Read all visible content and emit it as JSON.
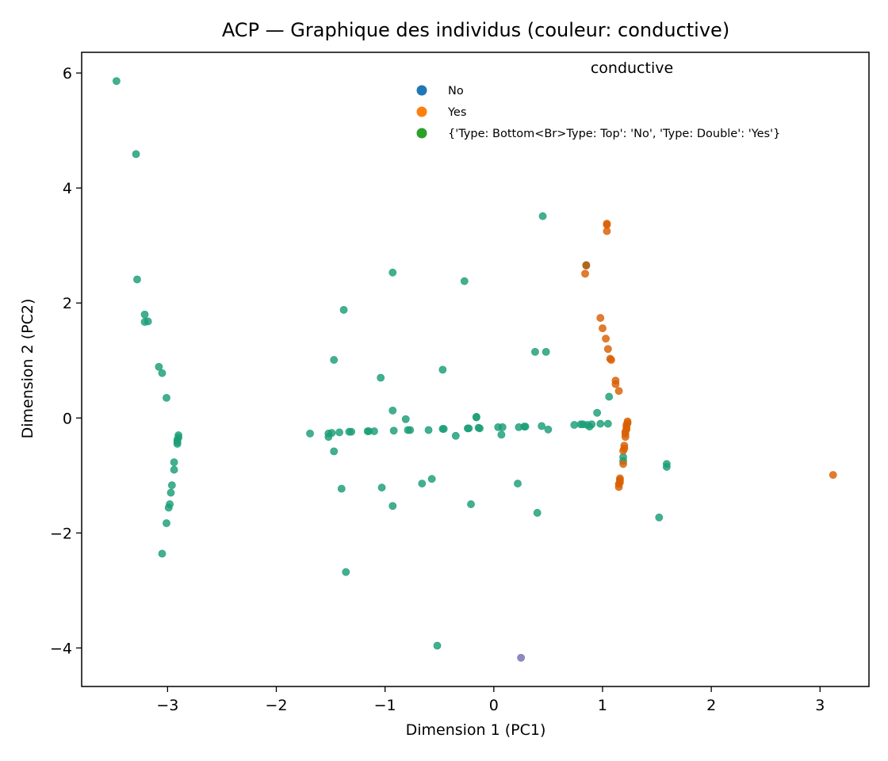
{
  "chart_data": {
    "type": "scatter",
    "title": "ACP — Graphique des individus (couleur: conductive)",
    "xlabel": "Dimension 1 (PC1)",
    "ylabel": "Dimension 2 (PC2)",
    "xlim": [
      -3.79,
      3.45
    ],
    "ylim": [
      -4.67,
      6.36
    ],
    "xticks": [
      -3,
      -2,
      -1,
      0,
      1,
      2,
      3
    ],
    "yticks": [
      -4,
      -2,
      0,
      2,
      4,
      6
    ],
    "xtick_labels": [
      "−3",
      "−2",
      "−1",
      "0",
      "1",
      "2",
      "3"
    ],
    "ytick_labels": [
      "−4",
      "−2",
      "0",
      "2",
      "4",
      "6"
    ],
    "grid": false,
    "legend": {
      "title": "conductive",
      "placement": "top-right",
      "entries": [
        {
          "label": "No",
          "color": "#1f77b4"
        },
        {
          "label": "Yes",
          "color": "#ff7f0e"
        },
        {
          "label": "{'Type: Bottom<Br>Type: Top': 'No', 'Type: Double': 'Yes'}",
          "color": "#2ca02c"
        }
      ]
    },
    "series": [
      {
        "color": "#1b9e77",
        "points": [
          [
            -3.47,
            5.86
          ],
          [
            -3.29,
            4.59
          ],
          [
            -3.28,
            2.41
          ],
          [
            -3.21,
            1.8
          ],
          [
            -3.21,
            1.67
          ],
          [
            -3.18,
            1.68
          ],
          [
            -3.08,
            0.89
          ],
          [
            -3.05,
            0.78
          ],
          [
            -3.01,
            0.35
          ],
          [
            -2.9,
            -0.3
          ],
          [
            -2.9,
            -0.34
          ],
          [
            -2.91,
            -0.38
          ],
          [
            -2.91,
            -0.42
          ],
          [
            -2.91,
            -0.45
          ],
          [
            -2.94,
            -0.77
          ],
          [
            -2.94,
            -0.9
          ],
          [
            -2.96,
            -1.17
          ],
          [
            -2.97,
            -1.3
          ],
          [
            -2.98,
            -1.5
          ],
          [
            -2.99,
            -1.56
          ],
          [
            -3.01,
            -1.83
          ],
          [
            -3.05,
            -2.36
          ],
          [
            -1.69,
            -0.27
          ],
          [
            -1.52,
            -0.33
          ],
          [
            -1.52,
            -0.27
          ],
          [
            -1.49,
            -0.26
          ],
          [
            -1.47,
            -0.58
          ],
          [
            -1.47,
            1.01
          ],
          [
            -1.42,
            -0.25
          ],
          [
            -1.4,
            -1.23
          ],
          [
            -1.38,
            1.88
          ],
          [
            -1.36,
            -2.68
          ],
          [
            -1.33,
            -0.24
          ],
          [
            -1.31,
            -0.24
          ],
          [
            -1.16,
            -0.23
          ],
          [
            -1.15,
            -0.23
          ],
          [
            -1.1,
            -0.23
          ],
          [
            -1.04,
            0.7
          ],
          [
            -1.03,
            -1.21
          ],
          [
            -0.93,
            2.53
          ],
          [
            -0.93,
            0.13
          ],
          [
            -0.92,
            -0.22
          ],
          [
            -0.93,
            -1.53
          ],
          [
            -0.81,
            -0.02
          ],
          [
            -0.79,
            -0.21
          ],
          [
            -0.77,
            -0.21
          ],
          [
            -0.66,
            -1.14
          ],
          [
            -0.6,
            -0.21
          ],
          [
            -0.57,
            -1.06
          ],
          [
            -0.52,
            -3.96
          ],
          [
            -0.47,
            0.84
          ],
          [
            -0.47,
            -0.19
          ],
          [
            -0.46,
            -0.19
          ],
          [
            -0.35,
            -0.31
          ],
          [
            -0.27,
            2.38
          ],
          [
            -0.24,
            -0.18
          ],
          [
            -0.23,
            -0.18
          ],
          [
            -0.21,
            -1.5
          ],
          [
            -0.16,
            0.02
          ],
          [
            -0.16,
            0.01
          ],
          [
            -0.14,
            -0.17
          ],
          [
            -0.13,
            -0.18
          ],
          [
            0.04,
            -0.16
          ],
          [
            0.07,
            -0.29
          ],
          [
            0.08,
            -0.16
          ],
          [
            0.22,
            -1.14
          ],
          [
            0.23,
            -0.16
          ],
          [
            0.28,
            -0.15
          ],
          [
            0.29,
            -0.15
          ],
          [
            0.38,
            1.15
          ],
          [
            0.4,
            -1.65
          ],
          [
            0.44,
            -0.14
          ],
          [
            0.45,
            3.51
          ],
          [
            0.48,
            1.15
          ],
          [
            0.5,
            -0.2
          ],
          [
            0.74,
            -0.12
          ],
          [
            0.8,
            -0.11
          ],
          [
            0.82,
            -0.11
          ],
          [
            0.86,
            -0.12
          ],
          [
            0.88,
            -0.15
          ],
          [
            0.9,
            -0.11
          ],
          [
            0.95,
            0.09
          ],
          [
            0.98,
            -0.1
          ],
          [
            1.05,
            -0.1
          ],
          [
            1.06,
            0.37
          ],
          [
            1.19,
            -0.68
          ],
          [
            1.19,
            -0.75
          ],
          [
            1.52,
            -1.73
          ],
          [
            1.59,
            -0.8
          ],
          [
            1.59,
            -0.85
          ]
        ]
      },
      {
        "color": "#d95f02",
        "points": [
          [
            1.04,
            3.38
          ],
          [
            1.04,
            3.36
          ],
          [
            1.04,
            3.25
          ],
          [
            0.85,
            2.65
          ],
          [
            0.84,
            2.51
          ],
          [
            0.98,
            1.74
          ],
          [
            1.0,
            1.56
          ],
          [
            1.03,
            1.38
          ],
          [
            1.05,
            1.2
          ],
          [
            1.07,
            1.03
          ],
          [
            1.08,
            1.01
          ],
          [
            1.12,
            0.65
          ],
          [
            1.12,
            0.59
          ],
          [
            1.15,
            0.47
          ],
          [
            1.23,
            -0.06
          ],
          [
            1.23,
            -0.09
          ],
          [
            1.22,
            -0.12
          ],
          [
            1.22,
            -0.16
          ],
          [
            1.22,
            -0.2
          ],
          [
            1.21,
            -0.24
          ],
          [
            1.21,
            -0.28
          ],
          [
            1.21,
            -0.33
          ],
          [
            1.2,
            -0.48
          ],
          [
            1.2,
            -0.53
          ],
          [
            1.19,
            -0.57
          ],
          [
            1.19,
            -0.8
          ],
          [
            1.16,
            -1.05
          ],
          [
            1.16,
            -1.08
          ],
          [
            1.16,
            -1.12
          ],
          [
            1.15,
            -1.15
          ],
          [
            1.15,
            -1.2
          ],
          [
            3.12,
            -0.99
          ]
        ]
      },
      {
        "color": "#a6611a",
        "points": [
          [
            0.85,
            2.66
          ]
        ]
      },
      {
        "color": "#7570b3",
        "points": [
          [
            0.25,
            -4.17
          ]
        ]
      }
    ]
  }
}
